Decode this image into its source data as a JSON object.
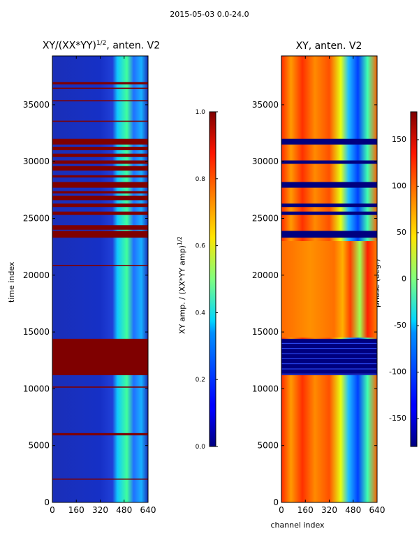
{
  "figure": {
    "suptitle": "2015-05-03 0.0-24.0"
  },
  "chart_data": [
    {
      "type": "heatmap",
      "title": "XY/(XX*YY)",
      "title_exponent": "1/2",
      "title_suffix": ", anten. V2",
      "xlabel": "",
      "ylabel": "time index",
      "xlim": [
        0,
        640
      ],
      "ylim": [
        0,
        39300
      ],
      "xticks": [
        0,
        160,
        320,
        480,
        640
      ],
      "yticks": [
        0,
        5000,
        10000,
        15000,
        20000,
        25000,
        30000,
        35000
      ],
      "colorbar": {
        "label": "XY amp. / (XX*YY amp)",
        "label_exponent": "1/2",
        "range": [
          0.0,
          1.0
        ],
        "ticks": [
          "0.0",
          "0.2",
          "0.4",
          "0.6",
          "0.8",
          "1.0"
        ],
        "colormap": "jet"
      },
      "saturated_rows": [
        [
          2000,
          2100
        ],
        [
          5900,
          6100
        ],
        [
          10100,
          10200
        ],
        [
          11200,
          14400
        ],
        [
          20800,
          20900
        ],
        [
          23300,
          23900
        ],
        [
          24000,
          24400
        ],
        [
          25300,
          25600
        ],
        [
          26000,
          26300
        ],
        [
          26600,
          27000
        ],
        [
          27200,
          27400
        ],
        [
          27700,
          28200
        ],
        [
          28600,
          28800
        ],
        [
          29200,
          29600
        ],
        [
          29800,
          30100
        ],
        [
          30400,
          30700
        ],
        [
          31000,
          31300
        ],
        [
          31500,
          32000
        ],
        [
          33500,
          33600
        ],
        [
          35300,
          35400
        ],
        [
          36400,
          36500
        ],
        [
          36800,
          37000
        ]
      ]
    },
    {
      "type": "heatmap",
      "title": "XY, anten. V2",
      "xlabel": "channel index",
      "ylabel": "",
      "xlim": [
        0,
        640
      ],
      "ylim": [
        0,
        39300
      ],
      "xticks": [
        0,
        160,
        320,
        480,
        640
      ],
      "yticks": [
        0,
        5000,
        10000,
        15000,
        20000,
        25000,
        30000,
        35000
      ],
      "colorbar": {
        "label": "phase (deg.)",
        "range": [
          -180,
          180
        ],
        "ticks": [
          "-150",
          "-100",
          "-50",
          "0",
          "50",
          "100",
          "150"
        ],
        "colormap": "jet"
      },
      "flagged_rows": [
        [
          11200,
          14400
        ],
        [
          23300,
          23900
        ],
        [
          25300,
          25600
        ],
        [
          26000,
          26300
        ],
        [
          27700,
          28200
        ],
        [
          29800,
          30100
        ],
        [
          31500,
          32000
        ]
      ],
      "flat_band": [
        14500,
        23000
      ]
    }
  ]
}
